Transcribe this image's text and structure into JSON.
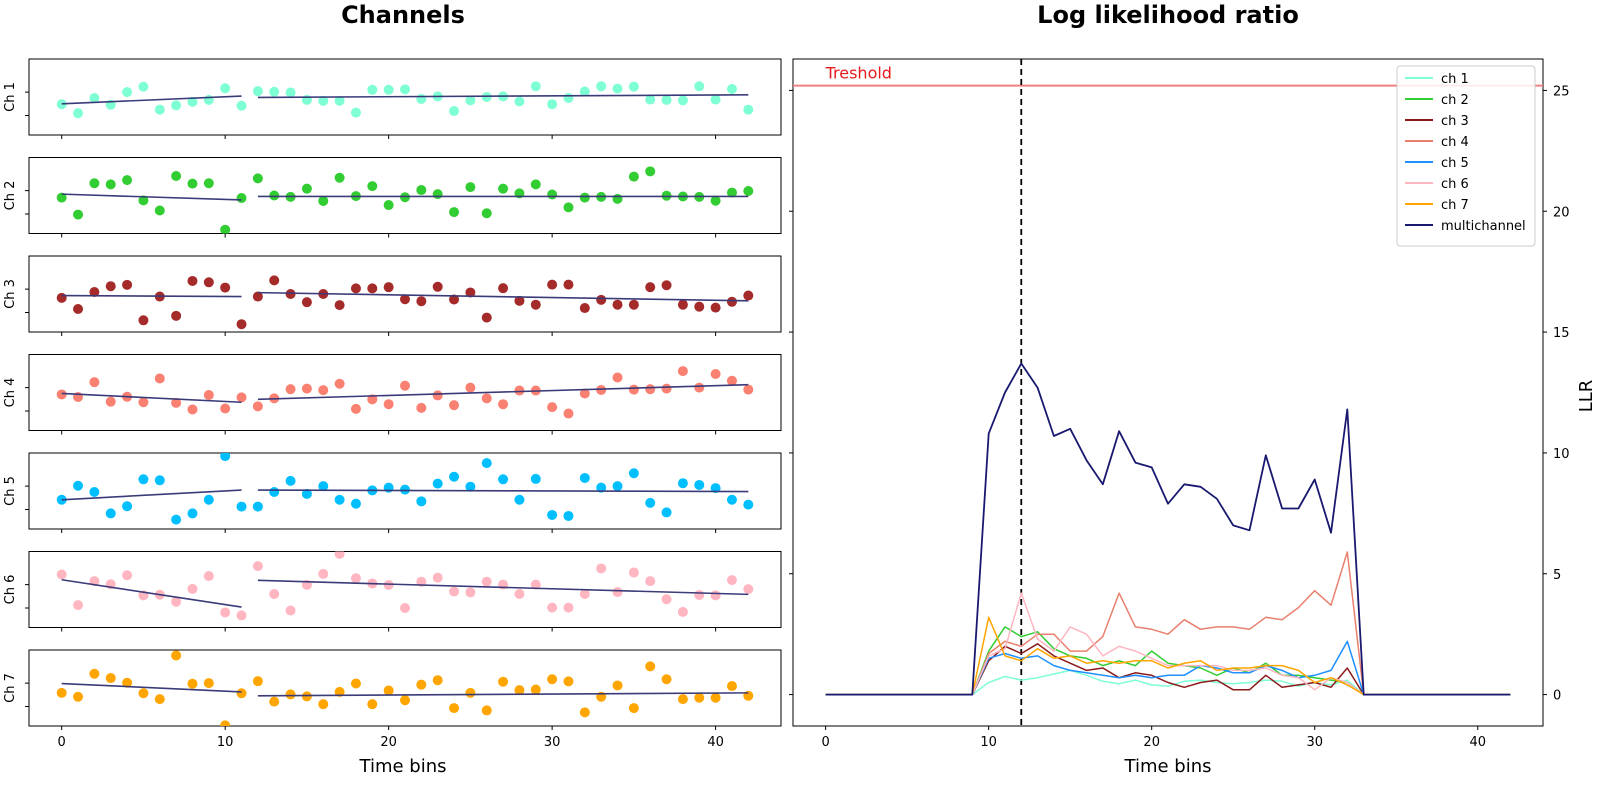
{
  "chart_data": [
    {
      "type": "scatter",
      "title": "Channels",
      "xlabel": "Time bins",
      "x_ticks": [
        "0",
        "10",
        "20",
        "30",
        "40"
      ],
      "xlim": [
        -2,
        44
      ],
      "y_tick_labels": false,
      "channels": [
        {
          "name": "Ch 1",
          "color": "#7fffd4",
          "values": [
            -0.02,
            -0.48,
            0.3,
            -0.05,
            0.6,
            0.88,
            -0.3,
            -0.08,
            0.1,
            0.2,
            0.8,
            -0.1,
            0.65,
            0.62,
            0.58,
            0.2,
            0.15,
            0.16,
            -0.45,
            0.72,
            0.72,
            0.74,
            0.25,
            0.38,
            -0.37,
            0.18,
            0.35,
            0.38,
            0.12,
            0.9,
            -0.02,
            0.3,
            0.63,
            0.9,
            0.78,
            0.88,
            0.22,
            0.2,
            0.18,
            0.9,
            0.22,
            0.76,
            -0.3
          ],
          "fit_segments": [
            [
              0,
              0.0,
              11,
              0.4
            ],
            [
              12,
              0.33,
              42,
              0.46
            ]
          ]
        },
        {
          "name": "Ch 2",
          "color": "#32cd32",
          "values": [
            0.24,
            -0.63,
            0.98,
            0.92,
            1.14,
            0.1,
            -0.42,
            1.35,
            0.96,
            0.98,
            -1.41,
            0.22,
            1.23,
            0.35,
            0.28,
            0.7,
            0.07,
            1.26,
            0.32,
            0.83,
            -0.14,
            0.26,
            0.63,
            0.42,
            -0.5,
            0.78,
            -0.56,
            0.7,
            0.46,
            0.92,
            0.4,
            -0.26,
            0.24,
            0.28,
            0.18,
            1.32,
            1.59,
            0.34,
            0.3,
            0.28,
            0.08,
            0.5,
            0.58
          ],
          "fit_segments": [
            [
              0,
              0.42,
              11,
              0.12
            ],
            [
              12,
              0.3,
              42,
              0.3
            ]
          ]
        },
        {
          "name": "Ch 3",
          "color": "#a52a2a",
          "values": [
            0.15,
            -0.42,
            0.45,
            0.75,
            0.82,
            -1.0,
            0.22,
            -0.77,
            1.02,
            0.95,
            0.68,
            -1.2,
            0.22,
            1.05,
            0.35,
            -0.07,
            0.35,
            -0.22,
            0.64,
            0.64,
            0.7,
            0.08,
            -0.02,
            0.72,
            0.07,
            0.43,
            -0.86,
            0.65,
            0.0,
            -0.2,
            0.83,
            0.83,
            -0.37,
            0.05,
            -0.2,
            -0.2,
            0.7,
            0.8,
            -0.2,
            -0.3,
            -0.35,
            -0.05,
            0.27
          ],
          "fit_segments": [
            [
              0,
              0.27,
              11,
              0.22
            ],
            [
              12,
              0.42,
              42,
              0.0
            ]
          ]
        },
        {
          "name": "Ch 4",
          "color": "#fa8072",
          "values": [
            0.25,
            0.12,
            0.88,
            -0.12,
            0.13,
            -0.15,
            1.07,
            -0.18,
            -0.52,
            0.22,
            -0.47,
            0.1,
            -0.36,
            0.05,
            0.52,
            0.55,
            0.47,
            0.8,
            -0.49,
            0.0,
            -0.25,
            0.7,
            -0.44,
            0.2,
            -0.3,
            0.6,
            0.05,
            -0.25,
            0.45,
            0.45,
            -0.4,
            -0.73,
            0.3,
            0.48,
            1.12,
            0.5,
            0.52,
            0.55,
            1.45,
            0.6,
            1.3,
            0.95,
            0.5
          ],
          "fit_segments": [
            [
              0,
              0.3,
              11,
              -0.15
            ],
            [
              12,
              0.0,
              42,
              0.75
            ]
          ]
        },
        {
          "name": "Ch 5",
          "color": "#00bfff",
          "values": [
            -0.1,
            0.62,
            0.3,
            -0.8,
            -0.43,
            0.95,
            0.9,
            -1.12,
            -0.8,
            -0.1,
            2.14,
            -0.45,
            -0.45,
            0.3,
            0.87,
            0.2,
            0.6,
            -0.1,
            -0.3,
            0.38,
            0.52,
            0.42,
            -0.18,
            0.73,
            1.08,
            0.57,
            1.78,
            0.95,
            -0.1,
            0.97,
            -0.88,
            -0.93,
            1.02,
            0.52,
            0.6,
            1.26,
            -0.26,
            -0.75,
            0.75,
            0.66,
            0.5,
            -0.1,
            -0.35
          ],
          "fit_segments": [
            [
              0,
              -0.1,
              11,
              0.4
            ],
            [
              12,
              0.4,
              42,
              0.32
            ]
          ]
        },
        {
          "name": "Ch 6",
          "color": "#ffb6c1",
          "values": [
            1.12,
            -0.45,
            0.78,
            0.62,
            1.08,
            0.05,
            0.08,
            -0.28,
            0.38,
            1.04,
            -0.83,
            -0.98,
            1.55,
            0.12,
            -0.73,
            0.59,
            1.15,
            2.18,
            0.93,
            0.66,
            0.58,
            -0.6,
            0.75,
            0.96,
            0.25,
            0.2,
            0.75,
            0.6,
            0.12,
            0.6,
            -0.58,
            -0.58,
            0.12,
            1.43,
            0.22,
            1.22,
            0.78,
            -0.15,
            -0.8,
            0.07,
            0.05,
            0.83,
            0.37
          ],
          "fit_segments": [
            [
              0,
              0.85,
              11,
              -0.55
            ],
            [
              12,
              0.82,
              42,
              0.1
            ]
          ]
        },
        {
          "name": "Ch 7",
          "color": "#ffa500",
          "values": [
            0.1,
            -0.1,
            1.08,
            0.86,
            0.62,
            0.08,
            -0.22,
            2.02,
            0.57,
            0.6,
            -1.57,
            0.08,
            0.7,
            -0.35,
            0.02,
            -0.08,
            -0.48,
            0.15,
            0.58,
            -0.48,
            0.22,
            -0.28,
            0.52,
            0.75,
            -0.68,
            0.1,
            -0.8,
            0.67,
            0.24,
            0.27,
            0.8,
            0.69,
            -0.9,
            -0.1,
            0.48,
            -0.68,
            1.46,
            0.8,
            -0.22,
            -0.15,
            -0.15,
            0.45,
            -0.05
          ],
          "fit_segments": [
            [
              0,
              0.58,
              11,
              0.15
            ],
            [
              12,
              -0.05,
              42,
              0.1
            ]
          ]
        }
      ]
    },
    {
      "type": "line",
      "title": "Log likelihood ratio",
      "xlabel": "Time bins",
      "ylabel": "LLR",
      "x_ticks": [
        "0",
        "10",
        "20",
        "30",
        "40"
      ],
      "y_ticks": [
        "0",
        "5",
        "10",
        "15",
        "20",
        "25"
      ],
      "xlim": [
        -2,
        44
      ],
      "ylim": [
        -1.3,
        26.3
      ],
      "y_axis_side": "right",
      "threshold": {
        "label": "Treshold",
        "value": 25.2,
        "color": "#e41a1c",
        "line_color": "#f08080"
      },
      "vline": {
        "x": 12,
        "style": "dashed",
        "color": "#000000"
      },
      "legend_position": "top-right",
      "x": [
        0,
        1,
        2,
        3,
        4,
        5,
        6,
        7,
        8,
        9,
        10,
        11,
        12,
        13,
        14,
        15,
        16,
        17,
        18,
        19,
        20,
        21,
        22,
        23,
        24,
        25,
        26,
        27,
        28,
        29,
        30,
        31,
        32,
        33,
        34,
        35,
        36,
        37,
        38,
        39,
        40,
        41,
        42
      ],
      "series": [
        {
          "name": "ch 1",
          "color": "#7fffd4",
          "values": [
            0,
            0,
            0,
            0,
            0,
            0,
            0,
            0,
            0,
            0,
            0.5,
            0.75,
            0.6,
            0.7,
            0.85,
            1.0,
            0.8,
            0.55,
            0.45,
            0.6,
            0.4,
            0.35,
            0.55,
            0.6,
            0.5,
            0.45,
            0.5,
            0.6,
            0.55,
            0.35,
            0.5,
            0.4,
            0.6,
            0,
            0,
            0,
            0,
            0,
            0,
            0,
            0,
            0,
            0
          ]
        },
        {
          "name": "ch 2",
          "color": "#32cd32",
          "values": [
            0,
            0,
            0,
            0,
            0,
            0,
            0,
            0,
            0,
            0,
            1.8,
            2.8,
            2.4,
            2.6,
            1.9,
            1.6,
            1.5,
            1.2,
            1.4,
            1.2,
            1.8,
            1.3,
            1.2,
            1.1,
            0.8,
            1.1,
            0.9,
            1.3,
            0.8,
            0.8,
            0.7,
            0.6,
            0.5,
            0,
            0,
            0,
            0,
            0,
            0,
            0,
            0,
            0,
            0
          ]
        },
        {
          "name": "ch 3",
          "color": "#8b1a1a",
          "values": [
            0,
            0,
            0,
            0,
            0,
            0,
            0,
            0,
            0,
            0,
            1.4,
            2.0,
            1.7,
            2.1,
            1.6,
            1.3,
            1.0,
            1.1,
            0.7,
            0.9,
            0.8,
            0.5,
            0.3,
            0.5,
            0.6,
            0.2,
            0.2,
            0.8,
            0.3,
            0.4,
            0.5,
            0.3,
            1.1,
            0,
            0,
            0,
            0,
            0,
            0,
            0,
            0,
            0,
            0
          ]
        },
        {
          "name": "ch 4",
          "color": "#e9806e",
          "values": [
            0,
            0,
            0,
            0,
            0,
            0,
            0,
            0,
            0,
            0,
            1.7,
            2.2,
            2.0,
            2.5,
            2.5,
            1.8,
            1.8,
            2.4,
            4.2,
            2.8,
            2.7,
            2.5,
            3.1,
            2.7,
            2.8,
            2.8,
            2.7,
            3.2,
            3.1,
            3.6,
            4.3,
            3.7,
            5.9,
            0,
            0,
            0,
            0,
            0,
            0,
            0,
            0,
            0,
            0
          ]
        },
        {
          "name": "ch 5",
          "color": "#1e90ff",
          "values": [
            0,
            0,
            0,
            0,
            0,
            0,
            0,
            0,
            0,
            0,
            1.5,
            1.7,
            1.5,
            1.6,
            1.2,
            1.0,
            0.9,
            0.8,
            0.7,
            0.8,
            0.7,
            0.8,
            0.8,
            1.2,
            1.1,
            0.9,
            0.9,
            1.2,
            1.0,
            0.7,
            0.8,
            1.0,
            2.2,
            0,
            0,
            0,
            0,
            0,
            0,
            0,
            0,
            0,
            0
          ]
        },
        {
          "name": "ch 6",
          "color": "#ffb6c1",
          "values": [
            0,
            0,
            0,
            0,
            0,
            0,
            0,
            0,
            0,
            0,
            1.6,
            1.9,
            4.2,
            2.3,
            1.8,
            2.8,
            2.5,
            1.6,
            2.0,
            1.8,
            1.5,
            1.2,
            1.2,
            1.2,
            1.2,
            1.0,
            1.0,
            1.1,
            0.8,
            0.7,
            0.2,
            0.7,
            0.5,
            0,
            0,
            0,
            0,
            0,
            0,
            0,
            0,
            0,
            0
          ]
        },
        {
          "name": "ch 7",
          "color": "#ffa500",
          "values": [
            0,
            0,
            0,
            0,
            0,
            0,
            0,
            0,
            0,
            0,
            3.2,
            1.6,
            1.4,
            1.9,
            1.5,
            1.6,
            1.3,
            1.4,
            1.3,
            1.4,
            1.4,
            1.1,
            1.3,
            1.4,
            1.0,
            1.1,
            1.1,
            1.2,
            1.2,
            1.0,
            0.5,
            0.7,
            0.4,
            0,
            0,
            0,
            0,
            0,
            0,
            0,
            0,
            0,
            0
          ]
        },
        {
          "name": "multichannel",
          "color": "#191970",
          "values": [
            0,
            0,
            0,
            0,
            0,
            0,
            0,
            0,
            0,
            0,
            10.8,
            12.5,
            13.7,
            12.7,
            10.7,
            11.0,
            9.7,
            8.7,
            10.9,
            9.6,
            9.4,
            7.9,
            8.7,
            8.6,
            8.1,
            7.0,
            6.8,
            9.9,
            7.7,
            7.7,
            8.9,
            6.7,
            11.8,
            0,
            0,
            0,
            0,
            0,
            0,
            0,
            0,
            0,
            0
          ]
        }
      ]
    }
  ]
}
